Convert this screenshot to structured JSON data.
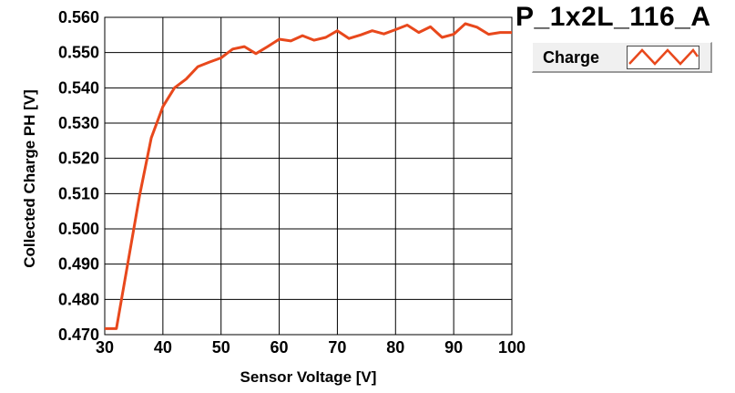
{
  "chart_data": {
    "type": "line",
    "title": "P_1x2L_116_A",
    "xlabel": "Sensor Voltage [V]",
    "ylabel": "Collected Charge PH [V]",
    "xlim": [
      30,
      100
    ],
    "ylim": [
      0.47,
      0.56
    ],
    "x_ticks": [
      "30",
      "40",
      "50",
      "60",
      "70",
      "80",
      "90",
      "100"
    ],
    "y_ticks": [
      "0.470",
      "0.480",
      "0.490",
      "0.500",
      "0.510",
      "0.520",
      "0.530",
      "0.540",
      "0.550",
      "0.560"
    ],
    "grid": true,
    "legend_position": "top-right",
    "series": [
      {
        "name": "Charge",
        "color": "#e8481c",
        "x": [
          30,
          32,
          34,
          36,
          38,
          40,
          42,
          44,
          46,
          48,
          50,
          52,
          54,
          56,
          58,
          60,
          62,
          64,
          66,
          68,
          70,
          72,
          74,
          76,
          78,
          80,
          82,
          84,
          86,
          88,
          90,
          92,
          94,
          96,
          98,
          100
        ],
        "y": [
          0.4717,
          0.4717,
          0.4905,
          0.5095,
          0.5258,
          0.5347,
          0.54,
          0.5425,
          0.546,
          0.5473,
          0.5485,
          0.551,
          0.5517,
          0.5497,
          0.5517,
          0.5538,
          0.5533,
          0.5548,
          0.5535,
          0.5543,
          0.5562,
          0.554,
          0.555,
          0.5562,
          0.5553,
          0.5565,
          0.5578,
          0.5557,
          0.5573,
          0.5543,
          0.5552,
          0.5582,
          0.5572,
          0.5552,
          0.5557,
          0.5557
        ]
      }
    ]
  }
}
